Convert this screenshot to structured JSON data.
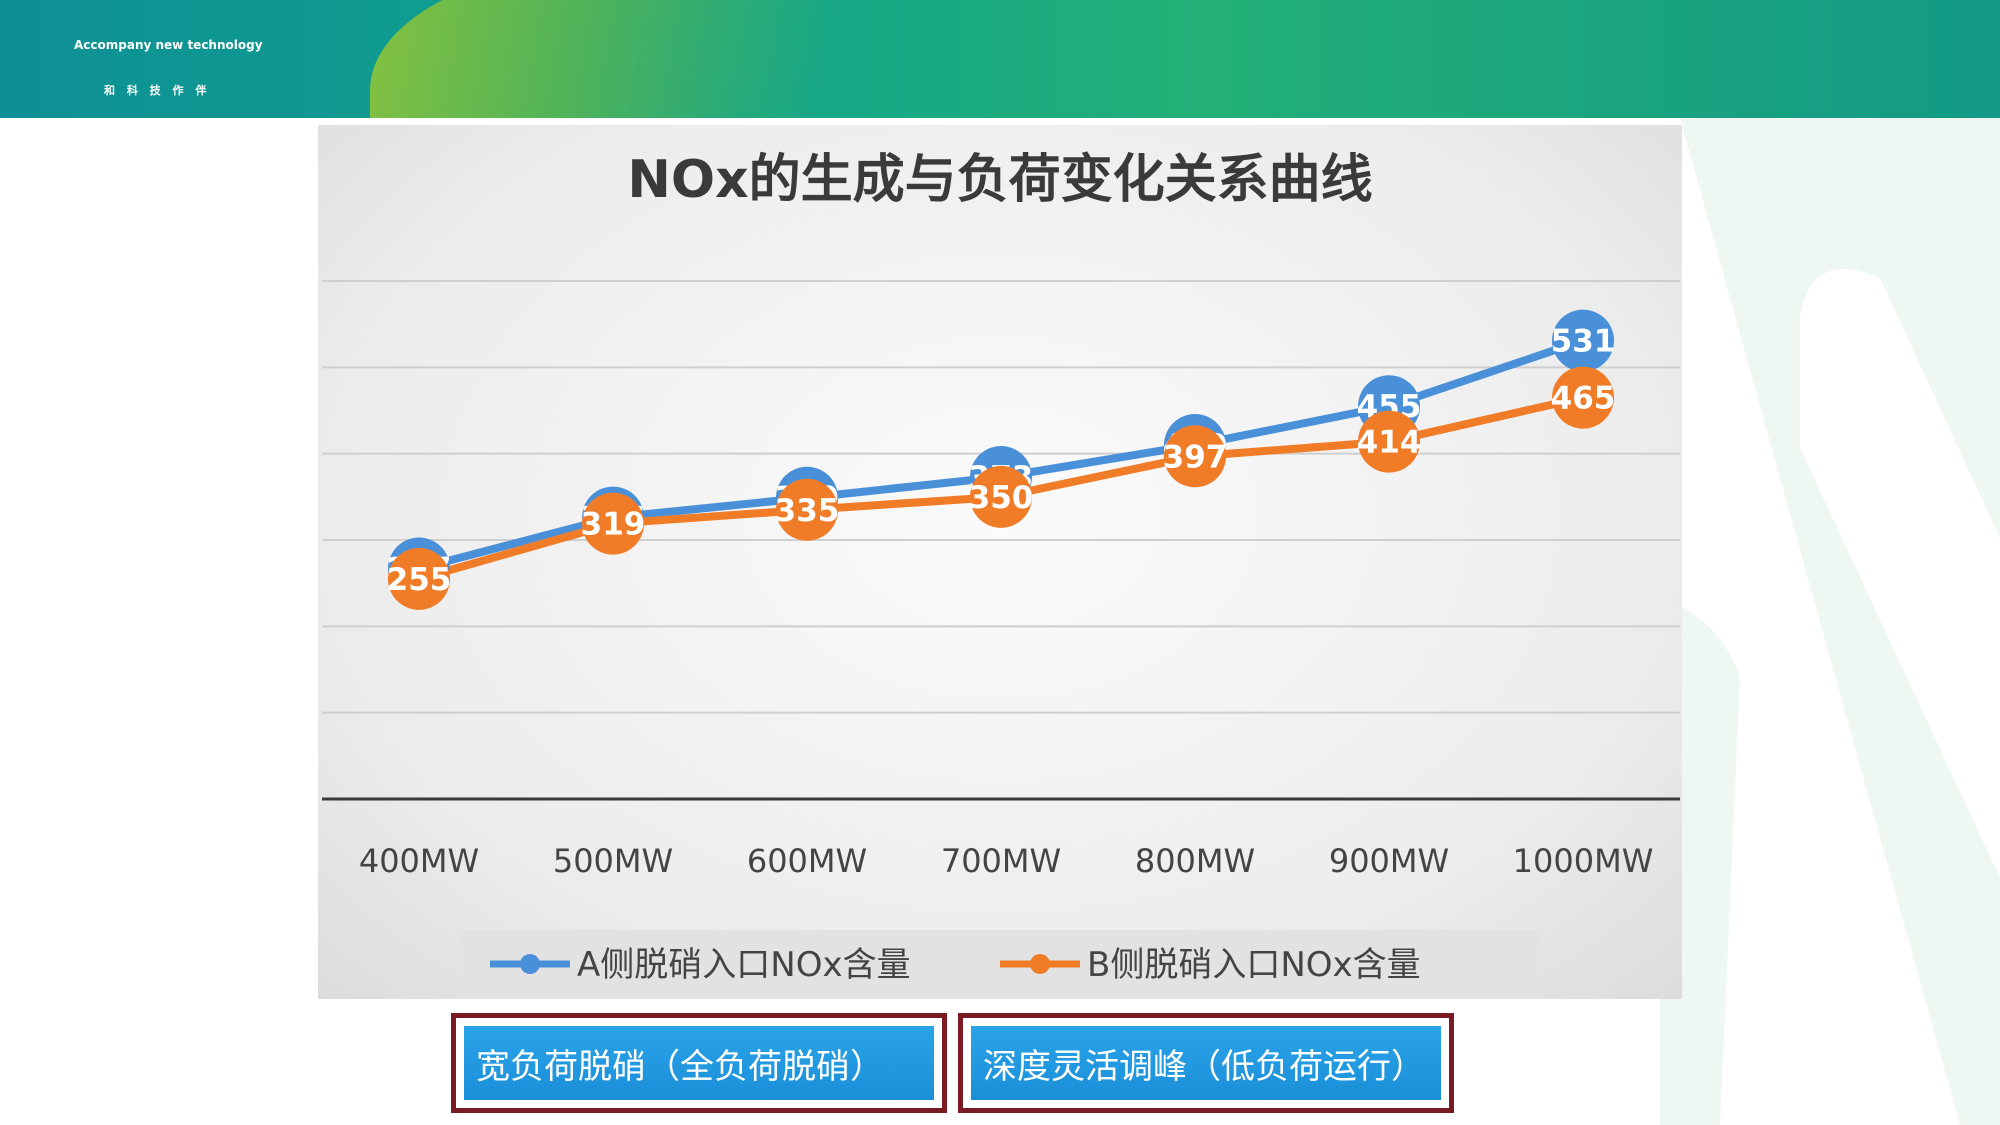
{
  "header": {
    "brand_en": "Accompany new technology",
    "brand_cn": "和 科 技 作 伴",
    "colors": {
      "teal": "#0d8f95",
      "green": "#22b077",
      "lime": "#86c13f"
    }
  },
  "chart_data": {
    "type": "line",
    "title": "NOx的生成与负荷变化关系曲线",
    "categories": [
      "400MW",
      "500MW",
      "600MW",
      "700MW",
      "800MW",
      "900MW",
      "1000MW"
    ],
    "series": [
      {
        "name": "A侧脱硝入口NOx含量",
        "color": "#4a90d9",
        "values": [
          267,
          326,
          349,
          373,
          410,
          455,
          531
        ]
      },
      {
        "name": "B侧脱硝入口NOx含量",
        "color": "#f07c28",
        "values": [
          255,
          319,
          335,
          350,
          397,
          414,
          465
        ]
      }
    ],
    "ylim": [
      0,
      600
    ],
    "grid": true,
    "legend": "bottom",
    "data_labels": true
  },
  "buttons": {
    "wide_load": "宽负荷脱硝（全负荷脱硝）",
    "deep_peak": "深度灵活调峰（低负荷运行）"
  }
}
